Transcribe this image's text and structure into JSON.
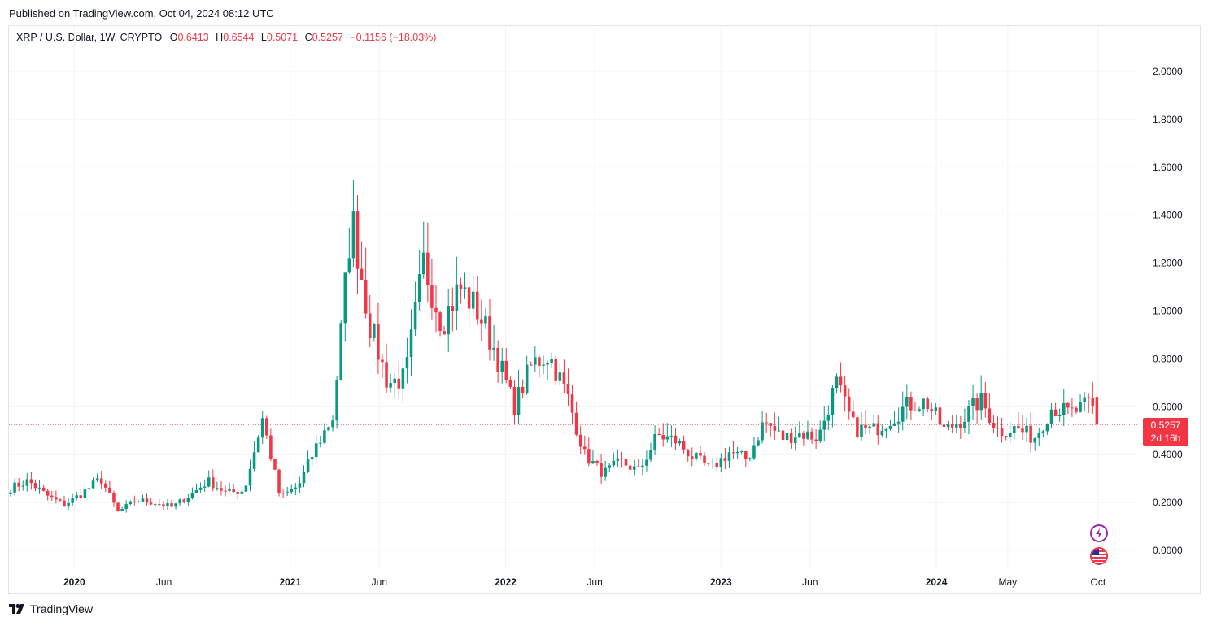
{
  "header": {
    "published": "Published on TradingView.com, Oct 04, 2024 08:12 UTC"
  },
  "legend": {
    "symbol": "XRP / U.S. Dollar, 1W, CRYPTO",
    "o_label": "O",
    "o_value": "0.6413",
    "h_label": "H",
    "h_value": "0.6544",
    "l_label": "L",
    "l_value": "0.5071",
    "c_label": "C",
    "c_value": "0.5257",
    "change": "−0.1156 (−18.03%)"
  },
  "price_tag": {
    "price": "0.5257",
    "countdown": "2d 16h"
  },
  "footer": {
    "brand": "TradingView"
  },
  "icons": [
    "flash-icon",
    "us-flag-icon",
    "tradingview-logo-icon"
  ],
  "colors": {
    "up": "#089981",
    "down": "#f23645",
    "grid": "#f0f3fa",
    "current_line": "#f23645"
  },
  "chart_data": {
    "type": "candlestick",
    "title": "XRP / U.S. Dollar, 1W, CRYPTO",
    "y_ticks": [
      "2.0000",
      "1.8000",
      "1.6000",
      "1.4000",
      "1.2000",
      "1.0000",
      "0.8000",
      "0.6000",
      "0.4000",
      "0.2000",
      "0.0000"
    ],
    "ylim": [
      0,
      2.0
    ],
    "x_ticks": [
      {
        "label": "2020",
        "bold": true,
        "date": "2020-01-01"
      },
      {
        "label": "Jun",
        "bold": false,
        "date": "2020-06-01"
      },
      {
        "label": "2021",
        "bold": true,
        "date": "2021-01-01"
      },
      {
        "label": "Jun",
        "bold": false,
        "date": "2021-06-01"
      },
      {
        "label": "2022",
        "bold": true,
        "date": "2022-01-01"
      },
      {
        "label": "Jun",
        "bold": false,
        "date": "2022-06-01"
      },
      {
        "label": "2023",
        "bold": true,
        "date": "2023-01-01"
      },
      {
        "label": "Jun",
        "bold": false,
        "date": "2023-06-01"
      },
      {
        "label": "2024",
        "bold": true,
        "date": "2024-01-01"
      },
      {
        "label": "May",
        "bold": false,
        "date": "2024-05-01"
      },
      {
        "label": "Oct",
        "bold": false,
        "date": "2024-10-01"
      }
    ],
    "current_price": 0.5257,
    "grid": true,
    "close_series_monthly": [
      {
        "date": "2019-09",
        "close": 0.26
      },
      {
        "date": "2019-10",
        "close": 0.29
      },
      {
        "date": "2019-11",
        "close": 0.23
      },
      {
        "date": "2019-12",
        "close": 0.19
      },
      {
        "date": "2020-01",
        "close": 0.24
      },
      {
        "date": "2020-02",
        "close": 0.3
      },
      {
        "date": "2020-03",
        "close": 0.16
      },
      {
        "date": "2020-04",
        "close": 0.21
      },
      {
        "date": "2020-05",
        "close": 0.2
      },
      {
        "date": "2020-06",
        "close": 0.18
      },
      {
        "date": "2020-07",
        "close": 0.23
      },
      {
        "date": "2020-08",
        "close": 0.29
      },
      {
        "date": "2020-09",
        "close": 0.24
      },
      {
        "date": "2020-10",
        "close": 0.25
      },
      {
        "date": "2020-11",
        "close": 0.55
      },
      {
        "date": "2020-12",
        "close": 0.22
      },
      {
        "date": "2021-01",
        "close": 0.27
      },
      {
        "date": "2021-02",
        "close": 0.44
      },
      {
        "date": "2021-03",
        "close": 0.56
      },
      {
        "date": "2021-04",
        "close": 1.4
      },
      {
        "date": "2021-05",
        "close": 0.95
      },
      {
        "date": "2021-06",
        "close": 0.7
      },
      {
        "date": "2021-07",
        "close": 0.72
      },
      {
        "date": "2021-08",
        "close": 1.2
      },
      {
        "date": "2021-09",
        "close": 0.95
      },
      {
        "date": "2021-10",
        "close": 1.1
      },
      {
        "date": "2021-11",
        "close": 1.0
      },
      {
        "date": "2021-12",
        "close": 0.83
      },
      {
        "date": "2022-01",
        "close": 0.6
      },
      {
        "date": "2022-02",
        "close": 0.78
      },
      {
        "date": "2022-03",
        "close": 0.82
      },
      {
        "date": "2022-04",
        "close": 0.65
      },
      {
        "date": "2022-05",
        "close": 0.4
      },
      {
        "date": "2022-06",
        "close": 0.32
      },
      {
        "date": "2022-07",
        "close": 0.37
      },
      {
        "date": "2022-08",
        "close": 0.33
      },
      {
        "date": "2022-09",
        "close": 0.48
      },
      {
        "date": "2022-10",
        "close": 0.46
      },
      {
        "date": "2022-11",
        "close": 0.39
      },
      {
        "date": "2022-12",
        "close": 0.34
      },
      {
        "date": "2023-01",
        "close": 0.41
      },
      {
        "date": "2023-02",
        "close": 0.38
      },
      {
        "date": "2023-03",
        "close": 0.54
      },
      {
        "date": "2023-04",
        "close": 0.47
      },
      {
        "date": "2023-05",
        "close": 0.49
      },
      {
        "date": "2023-06",
        "close": 0.47
      },
      {
        "date": "2023-07",
        "close": 0.7
      },
      {
        "date": "2023-08",
        "close": 0.51
      },
      {
        "date": "2023-09",
        "close": 0.5
      },
      {
        "date": "2023-10",
        "close": 0.55
      },
      {
        "date": "2023-11",
        "close": 0.61
      },
      {
        "date": "2023-12",
        "close": 0.62
      },
      {
        "date": "2024-01",
        "close": 0.5
      },
      {
        "date": "2024-02",
        "close": 0.55
      },
      {
        "date": "2024-03",
        "close": 0.63
      },
      {
        "date": "2024-04",
        "close": 0.5
      },
      {
        "date": "2024-05",
        "close": 0.51
      },
      {
        "date": "2024-06",
        "close": 0.47
      },
      {
        "date": "2024-07",
        "close": 0.6
      },
      {
        "date": "2024-08",
        "close": 0.57
      },
      {
        "date": "2024-09",
        "close": 0.61
      },
      {
        "date": "2024-10",
        "close": 0.5257
      }
    ]
  }
}
